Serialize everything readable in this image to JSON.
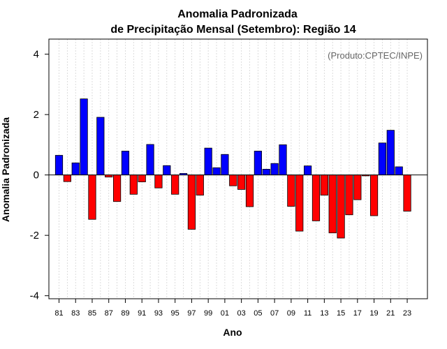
{
  "chart_data": {
    "type": "bar",
    "title": "Anomalia Padronizada",
    "subtitle": "de Precipitação Mensal (Setembro): Região 14",
    "xlabel": "Ano",
    "ylabel": "Anomalia Padronizada",
    "credit": "(Produto:CPTEC/INPE)",
    "ylim": [
      -4.1,
      4.5
    ],
    "yticks": [
      -4,
      -2,
      0,
      2,
      4
    ],
    "ytick_labels": [
      "-4",
      "-2",
      "0",
      "2",
      "4"
    ],
    "xtick_labels": [
      "81",
      "83",
      "85",
      "87",
      "89",
      "91",
      "93",
      "95",
      "97",
      "99",
      "01",
      "03",
      "05",
      "07",
      "09",
      "11",
      "13",
      "15",
      "17",
      "19",
      "21",
      "23"
    ],
    "categories": [
      "1981",
      "1982",
      "1983",
      "1984",
      "1985",
      "1986",
      "1987",
      "1988",
      "1989",
      "1990",
      "1991",
      "1992",
      "1993",
      "1994",
      "1995",
      "1996",
      "1997",
      "1998",
      "1999",
      "2000",
      "2001",
      "2002",
      "2003",
      "2004",
      "2005",
      "2006",
      "2007",
      "2008",
      "2009",
      "2010",
      "2011",
      "2012",
      "2013",
      "2014",
      "2015",
      "2016",
      "2017",
      "2018",
      "2019",
      "2020",
      "2021",
      "2022",
      "2023"
    ],
    "values": [
      0.65,
      -0.22,
      0.4,
      2.52,
      -1.47,
      1.91,
      -0.07,
      -0.88,
      0.79,
      -0.64,
      -0.23,
      1.01,
      -0.43,
      0.31,
      -0.64,
      0.05,
      -1.8,
      -0.67,
      0.89,
      0.24,
      0.68,
      -0.36,
      -0.48,
      -1.05,
      0.79,
      0.19,
      0.38,
      1.0,
      -1.04,
      -1.86,
      0.3,
      -1.52,
      -0.67,
      -1.92,
      -2.09,
      -1.32,
      -0.82,
      -0.03,
      -1.35,
      1.06,
      1.48,
      0.27,
      -1.2
    ],
    "colors": {
      "positive": "#0000ff",
      "negative": "#ff0000",
      "outline": "#000000",
      "zero_line": "#000000",
      "grid": "#d3d3d3"
    },
    "grid": true
  }
}
